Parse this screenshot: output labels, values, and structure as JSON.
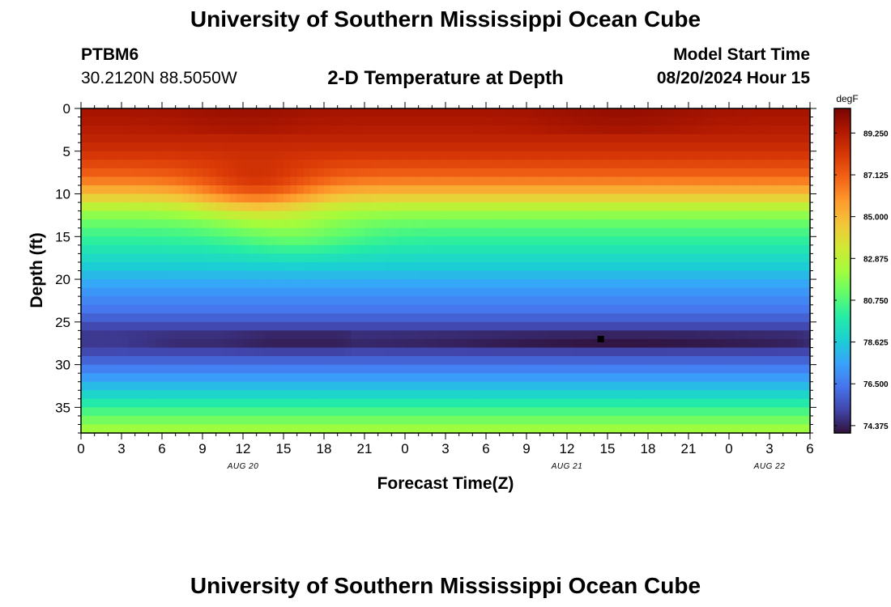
{
  "header": {
    "title": "University of Southern Mississippi Ocean Cube",
    "station_id": "PTBM6",
    "coordinates": "30.2120N  88.5050W",
    "chart_title": "2-D Temperature at Depth",
    "model_start_label": "Model Start Time",
    "model_start_value": "08/20/2024 Hour 15"
  },
  "footer": {
    "title": "University of Southern Mississippi Ocean Cube"
  },
  "chart_data": {
    "type": "heatmap",
    "title": "2-D Temperature at Depth",
    "xlabel": "Forecast Time(Z)",
    "ylabel": "Depth (ft)",
    "x_ticks": [
      "0",
      "3",
      "6",
      "9",
      "12",
      "15",
      "18",
      "21",
      "0",
      "3",
      "6",
      "9",
      "12",
      "15",
      "18",
      "21",
      "0",
      "3",
      "6"
    ],
    "x_range_hours": [
      0,
      54
    ],
    "date_labels": [
      {
        "label": "AUG 20",
        "hour": 12
      },
      {
        "label": "AUG 21",
        "hour": 36
      },
      {
        "label": "AUG 22",
        "hour": 51
      }
    ],
    "y_ticks": [
      "0",
      "5",
      "10",
      "15",
      "20",
      "25",
      "30",
      "35"
    ],
    "y_range": [
      0,
      38
    ],
    "y_inverted": true,
    "colorbar": {
      "unit": "degF",
      "ticks": [
        "89.250",
        "87.125",
        "85.000",
        "82.875",
        "80.750",
        "78.625",
        "76.500",
        "74.375"
      ],
      "range": [
        74.0,
        90.5
      ],
      "colors": [
        "#30123b",
        "#4145ab",
        "#4675ed",
        "#39a2fc",
        "#1bcfd4",
        "#24eca6",
        "#61fc6c",
        "#a4fc3b",
        "#d1e834",
        "#f3c63a",
        "#fe9b2d",
        "#f36315",
        "#d93806",
        "#b11901",
        "#7a0402"
      ]
    },
    "depth_profile": {
      "depth_ft": [
        0,
        2,
        4,
        6,
        8,
        10,
        12,
        14,
        16,
        18,
        20,
        22,
        24,
        25,
        26,
        27,
        28,
        29,
        30,
        31,
        32,
        33,
        34,
        35,
        36,
        37,
        38
      ],
      "temp_degF": [
        89.6,
        89.3,
        88.8,
        88.0,
        86.9,
        84.8,
        82.2,
        80.8,
        79.8,
        78.9,
        77.9,
        77.0,
        76.2,
        75.6,
        75.0,
        74.8,
        75.0,
        75.6,
        76.3,
        77.0,
        77.8,
        78.6,
        79.4,
        80.2,
        81.0,
        81.8,
        82.5
      ]
    },
    "features": [
      {
        "type": "warm_upwelling",
        "hour_center": 13,
        "depth_center": 10,
        "delta_degF": 2.2
      },
      {
        "type": "cold_core",
        "depth_ft": 27.2,
        "hour_range": [
          3,
          54
        ],
        "peak_hour": 40,
        "min_degF": 74.0
      },
      {
        "type": "cold_core",
        "depth_ft": 27.2,
        "hour_range": [
          10,
          20
        ],
        "peak_hour": 16,
        "min_degF": 74.3
      }
    ],
    "marker": {
      "hour": 38.5,
      "depth_ft": 27
    }
  }
}
